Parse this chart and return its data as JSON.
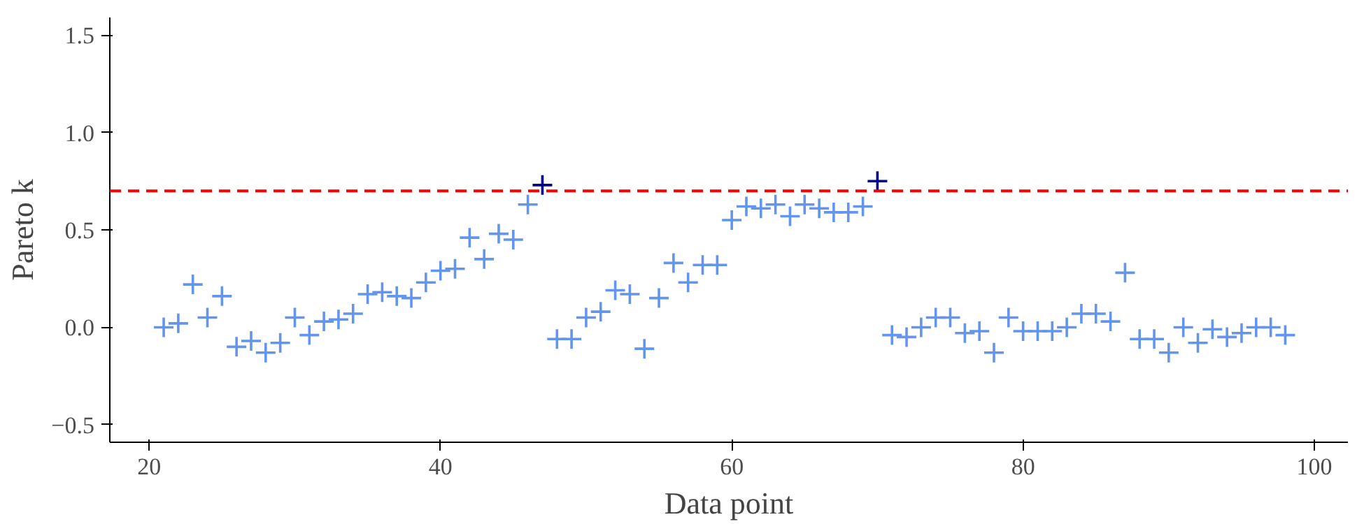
{
  "chart_data": {
    "type": "scatter",
    "xlabel": "Data point",
    "ylabel": "Pareto k",
    "marker": "cross",
    "grid": false,
    "xlim": [
      17.3,
      102.3
    ],
    "ylim": [
      -0.59,
      1.59
    ],
    "xticks": [
      20,
      40,
      60,
      80,
      100
    ],
    "yticks": [
      {
        "value": -0.5,
        "label": "−0.5"
      },
      {
        "value": 0,
        "label": "0.0"
      },
      0.5,
      {
        "value": 1,
        "label": "1.0"
      },
      1.5
    ],
    "series": [
      {
        "color": "#6495ed",
        "x": [
          21,
          22,
          23,
          24,
          25,
          26,
          27,
          28,
          29,
          30,
          31,
          32,
          33,
          34,
          35,
          36,
          37,
          38,
          39,
          40,
          41,
          42,
          43,
          44,
          45,
          46,
          48,
          49,
          50,
          51,
          52,
          53,
          54,
          55,
          56,
          57,
          58,
          59,
          60,
          61,
          62,
          63,
          64,
          65,
          66,
          67,
          68,
          69,
          71,
          72,
          73,
          74,
          75,
          76,
          77,
          78,
          79,
          80,
          81,
          82,
          83,
          84,
          85,
          86,
          87,
          88,
          89,
          90,
          91,
          92,
          93,
          94,
          95,
          96,
          97,
          98
        ],
        "values": [
          0.0,
          0.02,
          0.22,
          0.05,
          0.16,
          -0.1,
          -0.07,
          -0.13,
          -0.08,
          0.05,
          -0.04,
          0.03,
          0.04,
          0.07,
          0.17,
          0.18,
          0.16,
          0.15,
          0.23,
          0.29,
          0.3,
          0.46,
          0.35,
          0.48,
          0.45,
          0.63,
          -0.06,
          -0.06,
          0.05,
          0.08,
          0.19,
          0.17,
          -0.11,
          0.15,
          0.33,
          0.23,
          0.32,
          0.32,
          0.55,
          0.62,
          0.61,
          0.63,
          0.57,
          0.63,
          0.61,
          0.59,
          0.59,
          0.62,
          -0.04,
          -0.05,
          0.0,
          0.05,
          0.05,
          -0.03,
          -0.02,
          -0.13,
          0.05,
          -0.02,
          -0.02,
          -0.02,
          0.0,
          0.07,
          0.07,
          0.03,
          0.28,
          -0.06,
          -0.06,
          -0.13,
          0.0,
          -0.08,
          -0.01,
          -0.05,
          -0.03,
          0.0,
          0.0,
          -0.04
        ]
      },
      {
        "color": "#00008b",
        "x": [
          47,
          70
        ],
        "values": [
          0.73,
          0.75
        ]
      }
    ],
    "ref_lines": [
      {
        "axis": "y",
        "value": 0.7,
        "color": "#ff0000",
        "line_style": "dashed"
      }
    ]
  }
}
